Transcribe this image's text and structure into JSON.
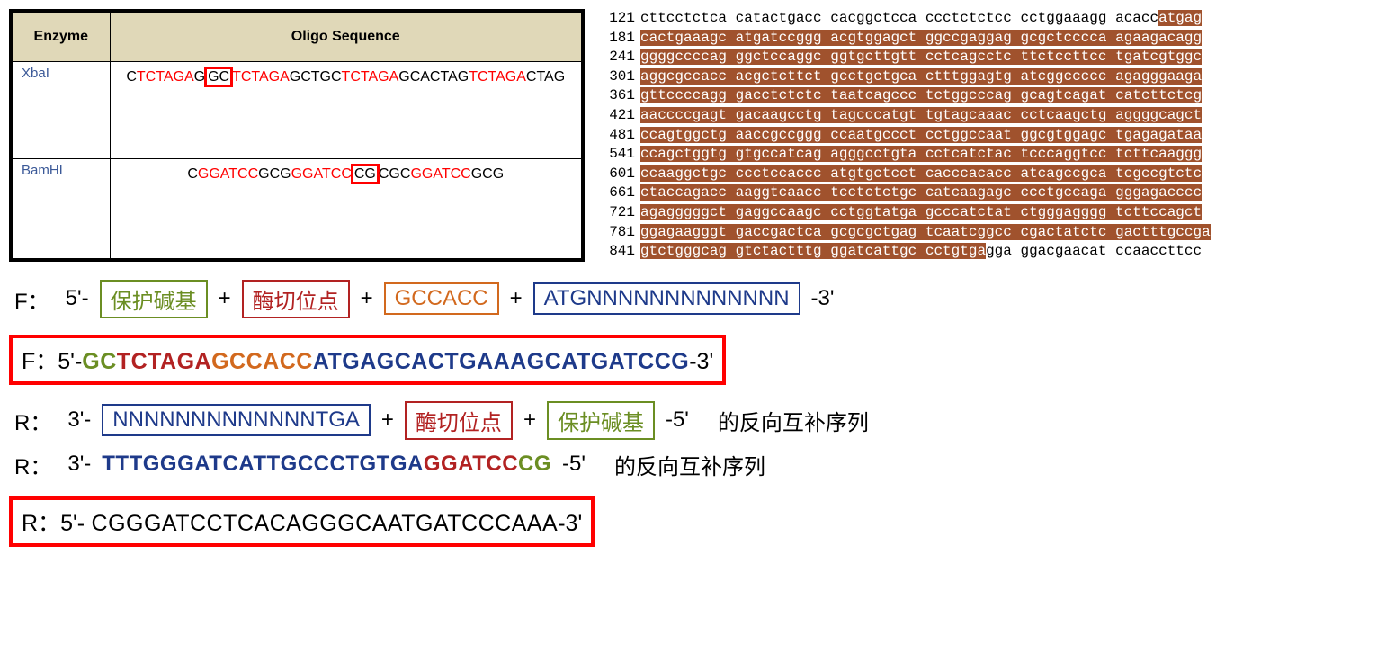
{
  "enzyme_table": {
    "headers": {
      "enzyme": "Enzyme",
      "oligo": "Oligo Sequence"
    },
    "rows": [
      {
        "enzyme": "XbaI",
        "oligos": [
          {
            "pre": "C",
            "site": "TCTAGA",
            "post": "G"
          },
          {
            "pre": "GC",
            "pre_box": true,
            "site": "TCTAGA",
            "post": "GC"
          },
          {
            "pre": "TGC",
            "site": "TCTAGA",
            "post": "GCA"
          },
          {
            "pre": "CTAG",
            "site": "TCTAGA",
            "post": "CTAG"
          }
        ]
      },
      {
        "enzyme": "BamHI",
        "oligos": [
          {
            "pre": "C",
            "site": "GGATCC",
            "post": "G"
          },
          {
            "pre": "CG",
            "site": "GGATCC",
            "post": "CG",
            "post_box": true
          },
          {
            "pre": "CGC",
            "site": "GGATCC",
            "post": "GCG"
          }
        ]
      }
    ],
    "colors": {
      "flank": "#000000",
      "site": "#ff0000",
      "box_border": "#ff0000"
    }
  },
  "sequence_panel": {
    "hl_bg": "#a0522d",
    "hl_fg": "#ffffff",
    "rows": [
      {
        "pos": "121",
        "plain_before": "cttcctctca catactgacc cacggctcca ccctctctcc cctggaaagg acacc",
        "hl": "atgag",
        "plain_after": ""
      },
      {
        "pos": "181",
        "hl": "cactgaaagc atgatccggg acgtggagct ggccgaggag gcgctcccca agaagacagg"
      },
      {
        "pos": "241",
        "hl": "ggggccccag ggctccaggc ggtgcttgtt cctcagcctc ttctccttcc tgatcgtggc"
      },
      {
        "pos": "301",
        "hl": "aggcgccacc acgctcttct gcctgctgca ctttggagtg atcggccccc agagggaaga"
      },
      {
        "pos": "361",
        "hl": "gttccccagg gacctctctc taatcagccc tctggcccag gcagtcagat catcttctcg"
      },
      {
        "pos": "421",
        "hl": "aaccccgagt gacaagcctg tagcccatgt tgtagcaaac cctcaagctg aggggcagct"
      },
      {
        "pos": "481",
        "hl": "ccagtggctg aaccgccggg ccaatgccct cctggccaat ggcgtggagc tgagagataa"
      },
      {
        "pos": "541",
        "hl": "ccagctggtg gtgccatcag agggcctgta cctcatctac tcccaggtcc tcttcaaggg"
      },
      {
        "pos": "601",
        "hl": "ccaaggctgc ccctccaccc atgtgctcct cacccacacc atcagccgca tcgccgtctc"
      },
      {
        "pos": "661",
        "hl": "ctaccagacc aaggtcaacc tcctctctgc catcaagagc ccctgccaga gggagacccc"
      },
      {
        "pos": "721",
        "hl": "agagggggct gaggccaagc cctggtatga gcccatctat ctgggagggg tcttccagct"
      },
      {
        "pos": "781",
        "hl": "ggagaagggt gaccgactca gcgcgctgag tcaatcggcc cgactatctc gactttgccga"
      },
      {
        "pos": "841",
        "hl": "gtctgggcag gtctactttg ggatcattgc cctgtga",
        "plain_after": "gga ggacgaacat ccaaccttcc"
      }
    ]
  },
  "primer_design": {
    "f_template": {
      "label": "F：",
      "five": "5'-",
      "three": "-3'",
      "segments": [
        {
          "text": "保护碱基",
          "color": "green"
        },
        {
          "text": "酶切位点",
          "color": "red"
        },
        {
          "text": "GCCACC",
          "color": "orange"
        },
        {
          "text": "ATGNNNNNNNNNNNNN",
          "color": "blue"
        }
      ]
    },
    "f_result": {
      "label": "F：",
      "five": "5'-",
      "three": "-3'",
      "parts": [
        {
          "text": "GC",
          "color": "green"
        },
        {
          "text": "TCTAGA",
          "color": "red"
        },
        {
          "text": "GCCACC",
          "color": "orange"
        },
        {
          "text": "ATGAGCACTGAAAGCATGATCCG",
          "color": "blue"
        }
      ]
    },
    "r_template": {
      "label": "R：",
      "three": "3'-",
      "five": "-5'",
      "segments": [
        {
          "text": "NNNNNNNNNNNNNTGA",
          "color": "blue"
        },
        {
          "text": "酶切位点",
          "color": "red"
        },
        {
          "text": "保护碱基",
          "color": "green"
        }
      ],
      "suffix": "的反向互补序列"
    },
    "r_intermediate": {
      "label": "R：",
      "three": "3'-",
      "five": "-5'",
      "parts": [
        {
          "text": "TTTGGGATCATTGCCCTGTGA",
          "color": "blue"
        },
        {
          "text": "GGATCC",
          "color": "red"
        },
        {
          "text": "CG",
          "color": "green"
        }
      ],
      "suffix": "的反向互补序列"
    },
    "r_result": {
      "label": "R：",
      "five": "5'-",
      "three": "-3'",
      "text": " CGGGATCCTCACAGGGCAATGATCCCAAA"
    }
  }
}
